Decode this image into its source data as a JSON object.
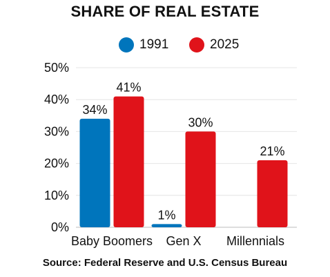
{
  "chart_data": {
    "type": "bar",
    "title": "SHARE OF REAL ESTATE",
    "categories": [
      "Baby Boomers",
      "Gen X",
      "Millennials"
    ],
    "series": [
      {
        "name": "1991",
        "color": "#0075bc",
        "values": [
          34,
          1,
          null
        ],
        "labels": [
          "34%",
          "1%",
          ""
        ]
      },
      {
        "name": "2025",
        "color": "#e0131a",
        "values": [
          41,
          30,
          21
        ],
        "labels": [
          "41%",
          "30%",
          "21%"
        ]
      }
    ],
    "ylim": [
      0,
      50
    ],
    "yticks": [
      0,
      10,
      20,
      30,
      40,
      50
    ],
    "ytick_labels": [
      "0%",
      "10%",
      "20%",
      "30%",
      "40%",
      "50%"
    ],
    "grid": true,
    "legend_position": "top-center",
    "source": "Source: Federal Reserve and U.S. Census Bureau"
  }
}
